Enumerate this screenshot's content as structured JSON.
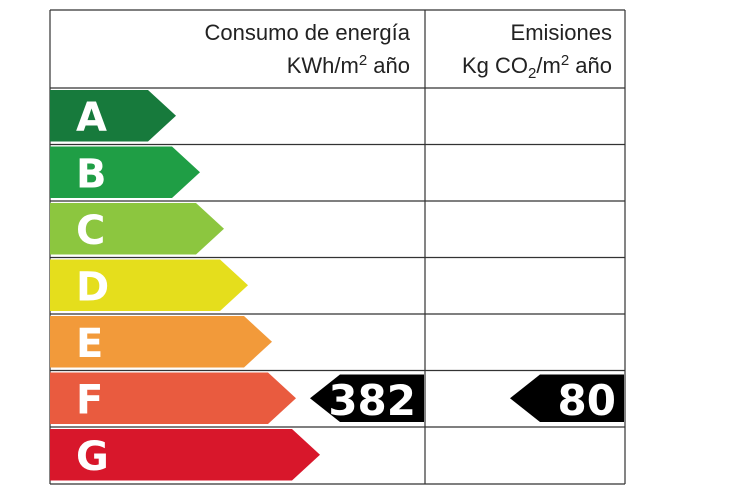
{
  "header": {
    "consumption": {
      "title": "Consumo de energía",
      "unit": [
        {
          "text": "KWh/m"
        },
        {
          "sup": "2"
        },
        {
          "text": " año"
        }
      ]
    },
    "emissions": {
      "title": "Emisiones",
      "unit": [
        {
          "text": "Kg CO"
        },
        {
          "sub": "2"
        },
        {
          "text": "/m"
        },
        {
          "sup": "2"
        },
        {
          "text": " año"
        }
      ]
    }
  },
  "ratings": [
    {
      "letter": "A",
      "color": "#177a3c"
    },
    {
      "letter": "B",
      "color": "#1f9e45"
    },
    {
      "letter": "C",
      "color": "#8cc63f"
    },
    {
      "letter": "D",
      "color": "#e5de1c"
    },
    {
      "letter": "E",
      "color": "#f29a3a"
    },
    {
      "letter": "F",
      "color": "#e95b3f"
    },
    {
      "letter": "G",
      "color": "#d8172b"
    }
  ],
  "consumption": {
    "value": 382,
    "rating": "F"
  },
  "emissions": {
    "value": 80,
    "rating": "F"
  }
}
